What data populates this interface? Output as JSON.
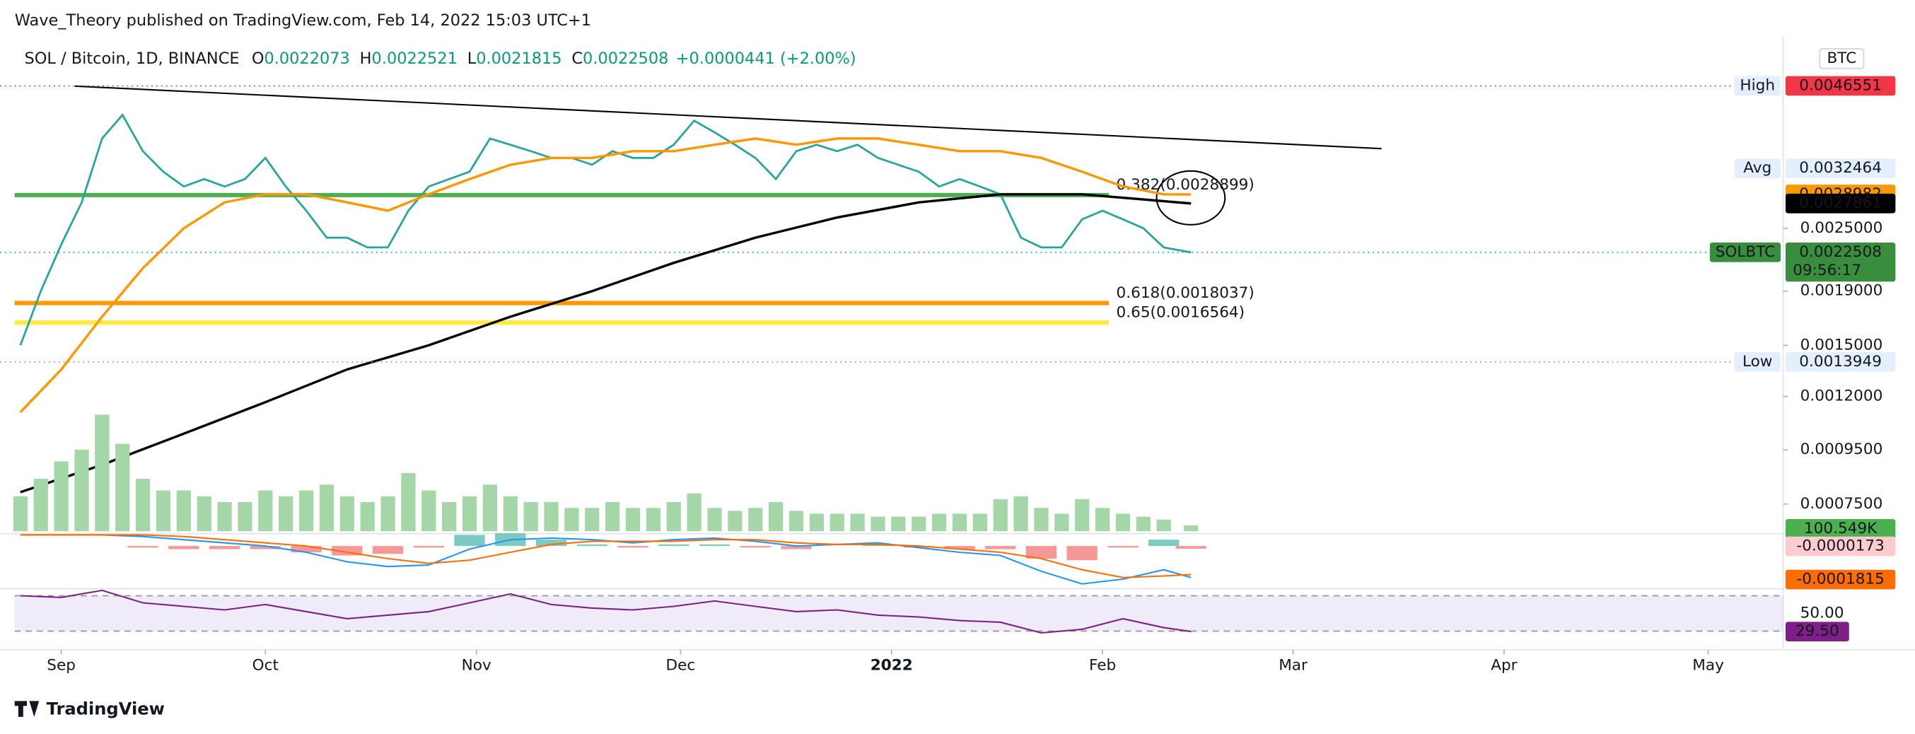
{
  "header": {
    "published": "Wave_Theory published on TradingView.com, Feb 14, 2022 15:03 UTC+1",
    "symbol": "SOL / Bitcoin, 1D, BINANCE",
    "ohlc": [
      {
        "key": "O",
        "value": "0.0022073"
      },
      {
        "key": "H",
        "value": "0.0022521"
      },
      {
        "key": "L",
        "value": "0.0021815"
      },
      {
        "key": "C",
        "value": "0.0022508"
      }
    ],
    "change": "+0.0000441 (+2.00%)"
  },
  "footer": {
    "brand": "TradingView"
  },
  "chart_data": [
    {
      "type": "line",
      "log_scale": true,
      "currency": "BTC",
      "xlim": [
        -9,
        253
      ],
      "xticks": [
        {
          "value": 0,
          "label": "Sep"
        },
        {
          "value": 30,
          "label": "Oct"
        },
        {
          "value": 61,
          "label": "Nov"
        },
        {
          "value": 91,
          "label": "Dec"
        },
        {
          "value": 122,
          "label": "2022",
          "bold": true
        },
        {
          "value": 153,
          "label": "Feb"
        },
        {
          "value": 181,
          "label": "Mar"
        },
        {
          "value": 212,
          "label": "Apr"
        },
        {
          "value": 242,
          "label": "May"
        }
      ],
      "ylim": [
        0.000666,
        0.00562
      ],
      "yticks": [
        {
          "value": 0.00075,
          "label": "0.0007500"
        },
        {
          "value": 0.00095,
          "label": "0.0009500"
        },
        {
          "value": 0.0012,
          "label": "0.0012000"
        },
        {
          "value": 0.0015,
          "label": "0.0015000"
        },
        {
          "value": 0.0019,
          "label": "0.0019000"
        },
        {
          "value": 0.0025,
          "label": "0.0025000"
        }
      ],
      "x": [
        -6,
        -3,
        0,
        3,
        6,
        9,
        12,
        15,
        18,
        21,
        24,
        27,
        30,
        33,
        36,
        39,
        42,
        45,
        48,
        51,
        54,
        57,
        60,
        63,
        66,
        69,
        72,
        75,
        78,
        81,
        84,
        87,
        90,
        93,
        96,
        99,
        102,
        105,
        108,
        111,
        114,
        117,
        120,
        123,
        126,
        129,
        132,
        135,
        138,
        141,
        144,
        147,
        150,
        153,
        156,
        159,
        162,
        166
      ],
      "series": [
        {
          "name": "SOLBTC",
          "color": "#26a69a",
          "last_time": "09:56:17",
          "values": [
            0.0015,
            0.0019,
            0.00233,
            0.0028,
            0.0037,
            0.0041,
            0.0035,
            0.0032,
            0.003,
            0.0031,
            0.003,
            0.0031,
            0.0034,
            0.003,
            0.0027,
            0.0024,
            0.0024,
            0.0023,
            0.0023,
            0.0027,
            0.003,
            0.0031,
            0.0032,
            0.0037,
            0.0036,
            0.0035,
            0.0034,
            0.0034,
            0.0033,
            0.0035,
            0.0034,
            0.0034,
            0.0036,
            0.004,
            0.0038,
            0.0036,
            0.0034,
            0.0031,
            0.0035,
            0.0036,
            0.0035,
            0.0036,
            0.0034,
            0.0033,
            0.0032,
            0.003,
            0.0031,
            0.003,
            0.0029,
            0.0024,
            0.0023,
            0.0023,
            0.0026,
            0.0027,
            0.0026,
            0.0025,
            0.0023,
            0.0022508
          ]
        },
        {
          "color": "#ff9800",
          "x": [
            -6,
            0,
            6,
            12,
            18,
            24,
            30,
            36,
            42,
            48,
            54,
            60,
            66,
            72,
            78,
            84,
            90,
            96,
            102,
            108,
            114,
            120,
            126,
            132,
            138,
            144,
            150,
            156,
            162,
            166
          ],
          "values": [
            0.00112,
            0.00135,
            0.0017,
            0.0021,
            0.0025,
            0.0028,
            0.0029,
            0.0029,
            0.0028,
            0.0027,
            0.0029,
            0.0031,
            0.0033,
            0.0034,
            0.0034,
            0.0035,
            0.0035,
            0.0036,
            0.0037,
            0.0036,
            0.0037,
            0.0037,
            0.0036,
            0.0035,
            0.0035,
            0.0034,
            0.0032,
            0.003,
            0.0029,
            0.0028982
          ]
        },
        {
          "color": "#000000",
          "x": [
            -6,
            6,
            18,
            30,
            42,
            54,
            66,
            78,
            90,
            102,
            114,
            126,
            138,
            150,
            166
          ],
          "values": [
            0.00079,
            0.00089,
            0.00102,
            0.00117,
            0.00135,
            0.0015,
            0.0017,
            0.0019,
            0.00215,
            0.0024,
            0.00262,
            0.0028,
            0.0029,
            0.0029,
            0.0027861
          ]
        }
      ],
      "trendline": {
        "color": "#000000",
        "x": [
          2,
          194
        ],
        "values": [
          0.00465,
          0.00354
        ]
      },
      "levels": [
        {
          "label": "0.382(0.0028899)",
          "value": 0.0028899,
          "color": "#4caf50"
        },
        {
          "label": "0.618(0.0018037)",
          "value": 0.0018037,
          "color": "#ff9800"
        },
        {
          "label": "0.65(0.0016564)",
          "value": 0.0016564,
          "color": "#ffeb3b"
        }
      ],
      "tags": [
        {
          "name": "High",
          "value": 0.0046551,
          "color": "#f23645",
          "text_color": "#ffffff",
          "dotted": true
        },
        {
          "name": "Avg",
          "value": 0.0032464,
          "color": "#e3effd",
          "text_color": "#131722",
          "dotted": false
        },
        {
          "name": "Low",
          "value": 0.0013949,
          "color": "#e3effd",
          "text_color": "#131722",
          "dotted": true
        }
      ]
    },
    {
      "type": "bar",
      "xlim": [
        -9,
        253
      ],
      "ylim": [
        0,
        2200
      ],
      "color": "#a5d6a7",
      "last_value_label": "100.549K",
      "tag_color": "#4caf50",
      "x": [
        -6,
        -3,
        0,
        3,
        6,
        9,
        12,
        15,
        18,
        21,
        24,
        27,
        30,
        33,
        36,
        39,
        42,
        45,
        48,
        51,
        54,
        57,
        60,
        63,
        66,
        69,
        72,
        75,
        78,
        81,
        84,
        87,
        90,
        93,
        96,
        99,
        102,
        105,
        108,
        111,
        114,
        117,
        120,
        123,
        126,
        129,
        132,
        135,
        138,
        141,
        144,
        147,
        150,
        153,
        156,
        159,
        162,
        166
      ],
      "values": [
        600,
        900,
        1200,
        1400,
        2000,
        1500,
        900,
        700,
        700,
        600,
        500,
        500,
        700,
        600,
        700,
        800,
        600,
        500,
        600,
        1000,
        700,
        500,
        600,
        800,
        600,
        500,
        500,
        400,
        400,
        500,
        400,
        400,
        500,
        650,
        400,
        350,
        400,
        500,
        350,
        300,
        300,
        300,
        250,
        250,
        250,
        300,
        300,
        300,
        550,
        600,
        400,
        300,
        550,
        400,
        300,
        250,
        200,
        100.549
      ]
    },
    {
      "type": "macd",
      "xlim": [
        -9,
        253
      ],
      "ylim": [
        -0.00027,
        7e-05
      ],
      "pos_color": "#26a69a",
      "neg_color": "#ef5350",
      "x": [
        -6,
        0,
        6,
        12,
        18,
        24,
        30,
        36,
        42,
        48,
        54,
        60,
        66,
        72,
        78,
        84,
        90,
        96,
        102,
        108,
        114,
        120,
        126,
        132,
        138,
        144,
        150,
        156,
        162,
        166
      ],
      "histogram": [
        0,
        0,
        0,
        -1e-05,
        -2e-05,
        -2e-05,
        -2e-05,
        -4e-05,
        -6e-05,
        -5e-05,
        -1e-05,
        7e-05,
        8e-05,
        4e-05,
        1e-05,
        -1e-05,
        1e-05,
        1e-05,
        -1e-05,
        -2e-05,
        0,
        1e-05,
        -1e-05,
        -2e-05,
        -2e-05,
        -8e-05,
        -9e-05,
        -1e-05,
        4e-05,
        -1.73e-05
      ],
      "hist_tag_color": "#fccbcd",
      "series": [
        {
          "color": "#2196f3",
          "values": [
            7e-05,
            7e-05,
            7e-05,
            6e-05,
            4e-05,
            2e-05,
            0,
            -4e-05,
            -0.0001,
            -0.00013,
            -0.00012,
            -2e-05,
            4e-05,
            5e-05,
            4e-05,
            2e-05,
            4e-05,
            5e-05,
            3e-05,
            0,
            1e-05,
            2e-05,
            -1e-05,
            -4e-05,
            -6e-05,
            -0.00016,
            -0.00024,
            -0.00021,
            -0.00015,
            -0.0002
          ]
        },
        {
          "color": "#ff6d00",
          "tag": true,
          "values": [
            7e-05,
            7e-05,
            7e-05,
            7e-05,
            6e-05,
            4e-05,
            2e-05,
            0,
            -4e-05,
            -8e-05,
            -0.00011,
            -9e-05,
            -4e-05,
            1e-05,
            3e-05,
            3e-05,
            3e-05,
            4e-05,
            4e-05,
            2e-05,
            1e-05,
            1e-05,
            0,
            -2e-05,
            -4e-05,
            -8e-05,
            -0.00015,
            -0.0002,
            -0.00019,
            -0.0001815
          ]
        }
      ]
    },
    {
      "type": "rsi",
      "xlim": [
        -9,
        253
      ],
      "ylim": [
        9,
        78
      ],
      "band": [
        30,
        70
      ],
      "color": "#7e1f86",
      "band_color": "#7e57c2",
      "yticks": [
        {
          "value": 50,
          "label": "50.00"
        }
      ],
      "last_label": "29.50",
      "x": [
        -6,
        0,
        6,
        12,
        18,
        24,
        30,
        36,
        42,
        48,
        54,
        60,
        66,
        72,
        78,
        84,
        90,
        96,
        102,
        108,
        114,
        120,
        126,
        132,
        138,
        144,
        150,
        156,
        162,
        166
      ],
      "values": [
        70,
        68,
        76,
        62,
        58,
        54,
        60,
        52,
        44,
        48,
        52,
        62,
        72,
        60,
        56,
        54,
        58,
        64,
        58,
        52,
        54,
        48,
        46,
        42,
        40,
        28,
        32,
        44,
        34,
        29.5
      ]
    }
  ]
}
